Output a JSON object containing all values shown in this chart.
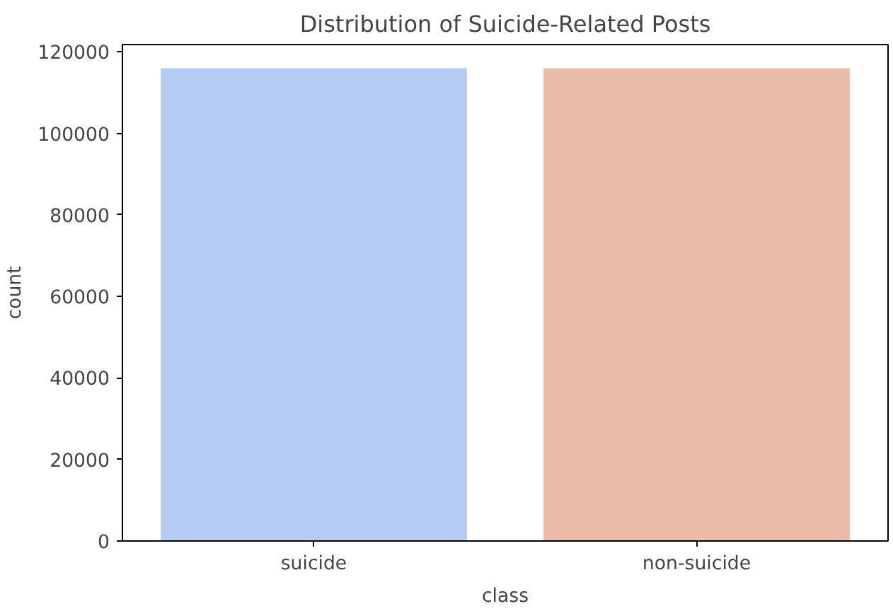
{
  "chart_data": {
    "type": "bar",
    "title": "Distribution of Suicide-Related Posts",
    "xlabel": "class",
    "ylabel": "count",
    "categories": [
      "suicide",
      "non-suicide"
    ],
    "values": [
      116000,
      116000
    ],
    "colors": [
      "#b5cbf3",
      "#ebbca7"
    ],
    "ylim": [
      0,
      121800
    ],
    "yticks": [
      0,
      20000,
      40000,
      60000,
      80000,
      100000,
      120000
    ],
    "grid": false
  }
}
